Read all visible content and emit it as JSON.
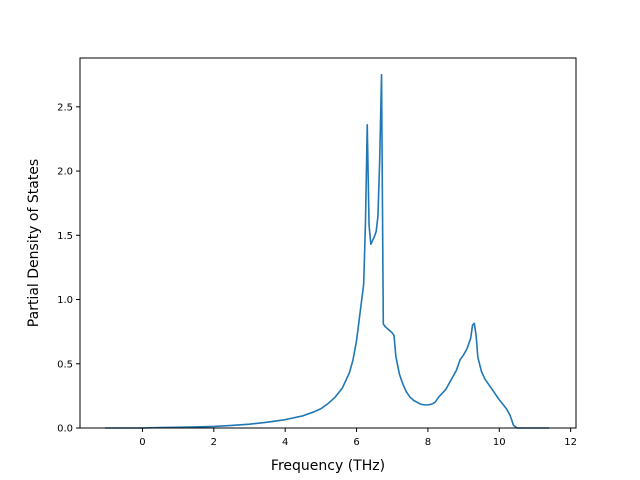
{
  "chart_data": {
    "type": "line",
    "xlabel": "Frequency (THz)",
    "ylabel": "Partial Density of States",
    "xlim": [
      -1.75,
      12.15
    ],
    "ylim": [
      0,
      2.88
    ],
    "x_ticks": [
      0,
      2,
      4,
      6,
      8,
      10,
      12
    ],
    "y_ticks": [
      0.0,
      0.5,
      1.0,
      1.5,
      2.0,
      2.5
    ],
    "x_tick_labels": [
      "0",
      "2",
      "4",
      "6",
      "8",
      "10",
      "12"
    ],
    "y_tick_labels": [
      "0.0",
      "0.5",
      "1.0",
      "1.5",
      "2.0",
      "2.5"
    ],
    "grid": false,
    "legend": "none",
    "colors": {
      "line": "#1f77b4"
    },
    "series": [
      {
        "x": [
          -1.05,
          -0.5,
          0.0,
          0.5,
          1.0,
          1.5,
          2.0,
          2.5,
          3.0,
          3.5,
          4.0,
          4.5,
          4.8,
          5.0,
          5.2,
          5.4,
          5.6,
          5.8,
          5.9,
          6.0,
          6.1,
          6.2,
          6.25,
          6.3,
          6.35,
          6.4,
          6.5,
          6.55,
          6.6,
          6.65,
          6.7,
          6.75,
          6.8,
          7.0,
          7.05,
          7.1,
          7.2,
          7.3,
          7.4,
          7.5,
          7.6,
          7.7,
          7.8,
          7.9,
          8.0,
          8.1,
          8.2,
          8.3,
          8.5,
          8.7,
          8.8,
          8.9,
          9.0,
          9.1,
          9.2,
          9.25,
          9.3,
          9.35,
          9.4,
          9.5,
          9.6,
          9.8,
          10.0,
          10.2,
          10.3,
          10.4,
          10.5,
          11.4
        ],
        "y": [
          0.0,
          0.0,
          0.0,
          0.003,
          0.005,
          0.008,
          0.012,
          0.02,
          0.03,
          0.045,
          0.065,
          0.095,
          0.125,
          0.15,
          0.19,
          0.24,
          0.31,
          0.43,
          0.53,
          0.68,
          0.9,
          1.12,
          1.6,
          2.36,
          1.58,
          1.43,
          1.49,
          1.53,
          1.65,
          2.1,
          2.75,
          0.81,
          0.79,
          0.74,
          0.72,
          0.56,
          0.42,
          0.34,
          0.28,
          0.24,
          0.215,
          0.2,
          0.185,
          0.18,
          0.18,
          0.185,
          0.2,
          0.24,
          0.3,
          0.4,
          0.45,
          0.53,
          0.57,
          0.62,
          0.7,
          0.8,
          0.815,
          0.72,
          0.55,
          0.44,
          0.38,
          0.3,
          0.22,
          0.15,
          0.1,
          0.02,
          0.0,
          0.0
        ]
      }
    ]
  }
}
